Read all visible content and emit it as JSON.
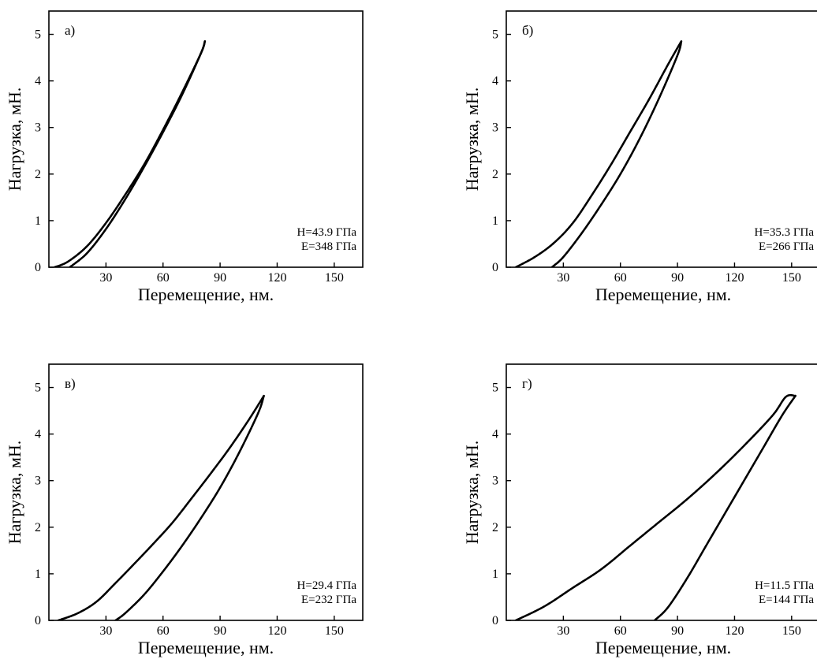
{
  "chart_data": [
    {
      "type": "line",
      "panel_label": "а)",
      "xlabel": "Перемещение, нм.",
      "ylabel": "Нагрузка, мН.",
      "xlim": [
        0,
        165
      ],
      "ylim": [
        0,
        5.5
      ],
      "xticks": [
        30,
        60,
        90,
        120,
        150
      ],
      "yticks": [
        0,
        1,
        2,
        3,
        4,
        5
      ],
      "grid": false,
      "annotations": [
        "H=43.9 ГПа",
        "E=348 ГПа"
      ],
      "series": [
        {
          "x": [
            3,
            10,
            20,
            30,
            40,
            50,
            60,
            70,
            80,
            82
          ],
          "y": [
            0,
            0.12,
            0.45,
            0.95,
            1.55,
            2.2,
            2.95,
            3.75,
            4.6,
            4.85
          ]
        },
        {
          "x": [
            11,
            20,
            30,
            40,
            50,
            60,
            70,
            80,
            82
          ],
          "y": [
            0,
            0.3,
            0.82,
            1.45,
            2.15,
            2.9,
            3.7,
            4.6,
            4.85
          ]
        }
      ]
    },
    {
      "type": "line",
      "panel_label": "б)",
      "xlabel": "Перемещение, нм.",
      "ylabel": "Нагрузка, мН.",
      "xlim": [
        0,
        165
      ],
      "ylim": [
        0,
        5.5
      ],
      "xticks": [
        30,
        60,
        90,
        120,
        150
      ],
      "yticks": [
        0,
        1,
        2,
        3,
        4,
        5
      ],
      "grid": false,
      "annotations": [
        "H=35.3 ГПа",
        "E=266 ГПа"
      ],
      "series": [
        {
          "x": [
            5,
            15,
            25,
            35,
            45,
            55,
            65,
            75,
            85,
            92
          ],
          "y": [
            0,
            0.22,
            0.52,
            0.95,
            1.55,
            2.2,
            2.9,
            3.6,
            4.35,
            4.85
          ]
        },
        {
          "x": [
            24,
            30,
            40,
            50,
            60,
            70,
            80,
            90,
            92
          ],
          "y": [
            0,
            0.22,
            0.75,
            1.35,
            2.0,
            2.75,
            3.6,
            4.55,
            4.85
          ]
        }
      ]
    },
    {
      "type": "line",
      "panel_label": "в)",
      "xlabel": "Перемещение, нм.",
      "ylabel": "Нагрузка, мН.",
      "xlim": [
        0,
        165
      ],
      "ylim": [
        0,
        5.5
      ],
      "xticks": [
        30,
        60,
        90,
        120,
        150
      ],
      "yticks": [
        0,
        1,
        2,
        3,
        4,
        5
      ],
      "grid": false,
      "annotations": [
        "H=29.4 ГПа",
        "E=232 ГПа"
      ],
      "series": [
        {
          "x": [
            5,
            15,
            25,
            35,
            45,
            55,
            65,
            75,
            85,
            95,
            105,
            113
          ],
          "y": [
            0,
            0.15,
            0.4,
            0.8,
            1.22,
            1.65,
            2.1,
            2.62,
            3.15,
            3.7,
            4.3,
            4.82
          ]
        },
        {
          "x": [
            35,
            40,
            50,
            60,
            70,
            80,
            90,
            100,
            110,
            113
          ],
          "y": [
            0,
            0.15,
            0.55,
            1.05,
            1.6,
            2.2,
            2.85,
            3.6,
            4.45,
            4.82
          ]
        }
      ]
    },
    {
      "type": "line",
      "panel_label": "г)",
      "xlabel": "Перемещение, нм.",
      "ylabel": "Нагрузка, мН.",
      "xlim": [
        0,
        165
      ],
      "ylim": [
        0,
        5.5
      ],
      "xticks": [
        30,
        60,
        90,
        120,
        150
      ],
      "yticks": [
        0,
        1,
        2,
        3,
        4,
        5
      ],
      "grid": false,
      "annotations": [
        "H=11.5 ГПа",
        "E=144 ГПа"
      ],
      "series": [
        {
          "x": [
            5,
            20,
            35,
            50,
            65,
            80,
            95,
            110,
            125,
            140,
            147,
            152
          ],
          "y": [
            0,
            0.3,
            0.7,
            1.1,
            1.6,
            2.1,
            2.6,
            3.15,
            3.75,
            4.4,
            4.8,
            4.82
          ]
        },
        {
          "x": [
            78,
            85,
            95,
            105,
            115,
            125,
            135,
            145,
            152
          ],
          "y": [
            0,
            0.28,
            0.9,
            1.6,
            2.3,
            3.0,
            3.7,
            4.4,
            4.82
          ]
        }
      ]
    }
  ]
}
